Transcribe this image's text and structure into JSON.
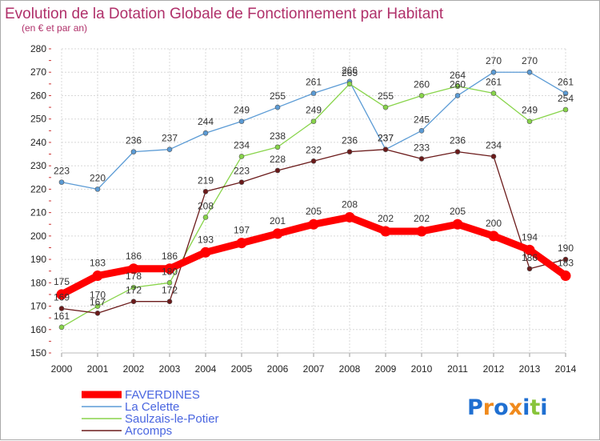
{
  "chart_data": {
    "type": "line",
    "title": "Evolution de la Dotation Globale de Fonctionnement par Habitant",
    "subtitle": "(en € et par an)",
    "x": [
      "2000",
      "2001",
      "2002",
      "2003",
      "2004",
      "2005",
      "2006",
      "2007",
      "2008",
      "2009",
      "2010",
      "2011",
      "2012",
      "2013",
      "2014"
    ],
    "ylim": [
      150,
      280
    ],
    "yticks": [
      "150",
      "160",
      "170",
      "180",
      "190",
      "200",
      "210",
      "220",
      "230",
      "240",
      "250",
      "260",
      "270",
      "280"
    ],
    "grid": true,
    "legend_position": "bottom-left",
    "series": [
      {
        "name": "FAVERDINES",
        "color": "#ff0000",
        "values": [
          175,
          183,
          186,
          186,
          193,
          197,
          201,
          205,
          208,
          202,
          202,
          205,
          200,
          194,
          183
        ],
        "labels": [
          "175",
          "183",
          "186",
          "186",
          "193",
          "197",
          "201",
          "205",
          "208",
          "202",
          "202",
          "205",
          "200",
          "194",
          "183"
        ]
      },
      {
        "name": "La Celette",
        "color": "#5b9bd5",
        "values": [
          223,
          220,
          236,
          237,
          244,
          249,
          255,
          261,
          266,
          237,
          245,
          260,
          270,
          270,
          261
        ],
        "labels": [
          "223",
          "220",
          "236",
          "237",
          "244",
          "249",
          "255",
          "261",
          "266",
          "237",
          "245",
          "260",
          "270",
          "270",
          "261"
        ]
      },
      {
        "name": "Saulzais-le-Potier",
        "color": "#88d44a",
        "values": [
          161,
          170,
          178,
          180,
          208,
          234,
          238,
          249,
          265,
          255,
          260,
          264,
          261,
          249,
          254
        ],
        "labels": [
          "161",
          "170",
          "178",
          "180",
          "208",
          "234",
          "238",
          "249",
          "265",
          "255",
          "260",
          "264",
          "261",
          "249",
          "254"
        ]
      },
      {
        "name": "Arcomps",
        "color": "#6b1a1a",
        "values": [
          169,
          167,
          172,
          172,
          219,
          223,
          228,
          232,
          236,
          237,
          233,
          236,
          234,
          186,
          190
        ],
        "labels": [
          "169",
          "167",
          "172",
          "172",
          "219",
          "223",
          "228",
          "232",
          "236",
          "237",
          "233",
          "236",
          "234",
          "186",
          "190"
        ]
      }
    ]
  },
  "logo": {
    "text": "Proxiti",
    "colors": [
      "#1f6fd1",
      "#f08a1c",
      "#1f6fd1",
      "#f08a1c",
      "#1f6fd1",
      "#88c43a",
      "#1f6fd1"
    ]
  }
}
